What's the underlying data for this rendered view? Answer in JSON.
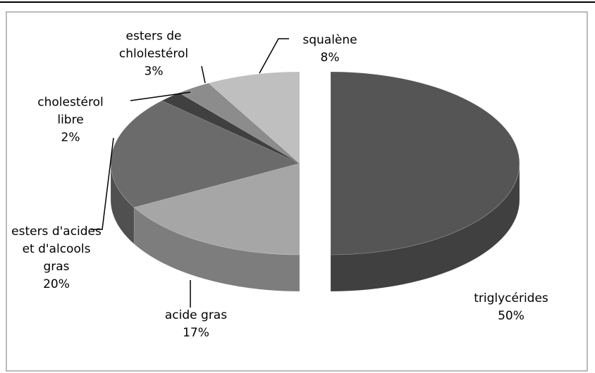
{
  "chart_data": {
    "type": "pie3d",
    "categories": [
      "triglycérides",
      "acide gras",
      "esters d'acides et d'alcools gras",
      "cholestérol libre",
      "esters de chlolestérol",
      "squalène"
    ],
    "values": [
      50,
      17,
      20,
      2,
      3,
      8
    ],
    "value_labels": [
      "50%",
      "17%",
      "20%",
      "2%",
      "3%",
      "8%"
    ],
    "colors": [
      "#555555",
      "#a6a6a6",
      "#6b6b6b",
      "#404040",
      "#8c8c8c",
      "#bfbfbf"
    ]
  }
}
